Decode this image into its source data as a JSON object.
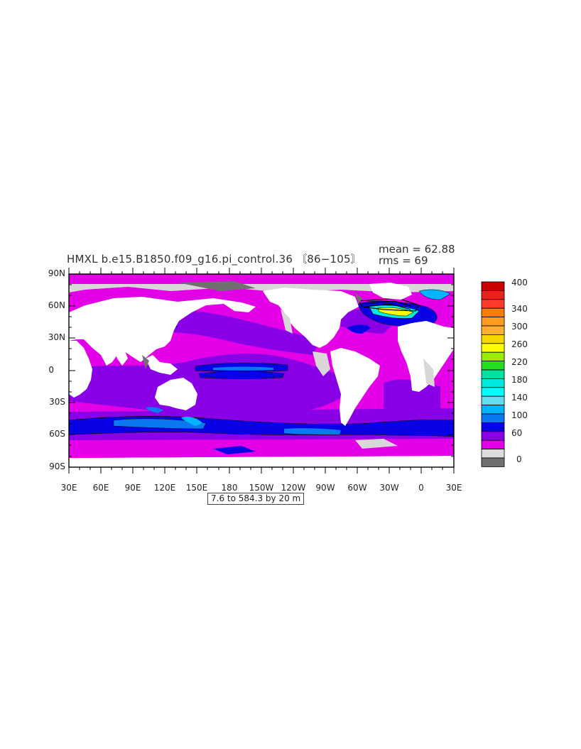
{
  "header": {
    "title": "HMXL b.e15.B1850.f09_g16.pi_control.36 〘86−105〙",
    "mean_label": "mean = 62.88",
    "rms_label": "rms = 69"
  },
  "axes": {
    "y_ticks": [
      "90N",
      "60N",
      "30N",
      "0",
      "30S",
      "60S",
      "90S"
    ],
    "x_ticks": [
      "30E",
      "60E",
      "90E",
      "120E",
      "150E",
      "180",
      "150W",
      "120W",
      "90W",
      "60W",
      "30W",
      "0",
      "30E"
    ]
  },
  "range_label": "7.6 to 584.3 by 20 m",
  "colorbar": {
    "labels": [
      "400",
      "340",
      "300",
      "260",
      "220",
      "180",
      "140",
      "100",
      "60",
      "0"
    ],
    "colors": [
      "#c80000",
      "#e8211a",
      "#ff3a2a",
      "#f57f00",
      "#ff9a20",
      "#ffb030",
      "#f5d800",
      "#ffff00",
      "#99ee00",
      "#22dd22",
      "#00e0a0",
      "#00e8e0",
      "#00ffff",
      "#66dcef",
      "#00b4ff",
      "#0a78f0",
      "#0a00e6",
      "#8a00e6",
      "#e400e6",
      "#dddddd",
      "#707070"
    ]
  },
  "colors": {
    "magenta": "#e400e6",
    "purple": "#8a00e6",
    "blue": "#0a00e6",
    "light_blue": "#0a78f0",
    "sky": "#00b4ff",
    "light_gray": "#d8d8d8",
    "dark_gray": "#707070",
    "land": "#ffffff"
  }
}
